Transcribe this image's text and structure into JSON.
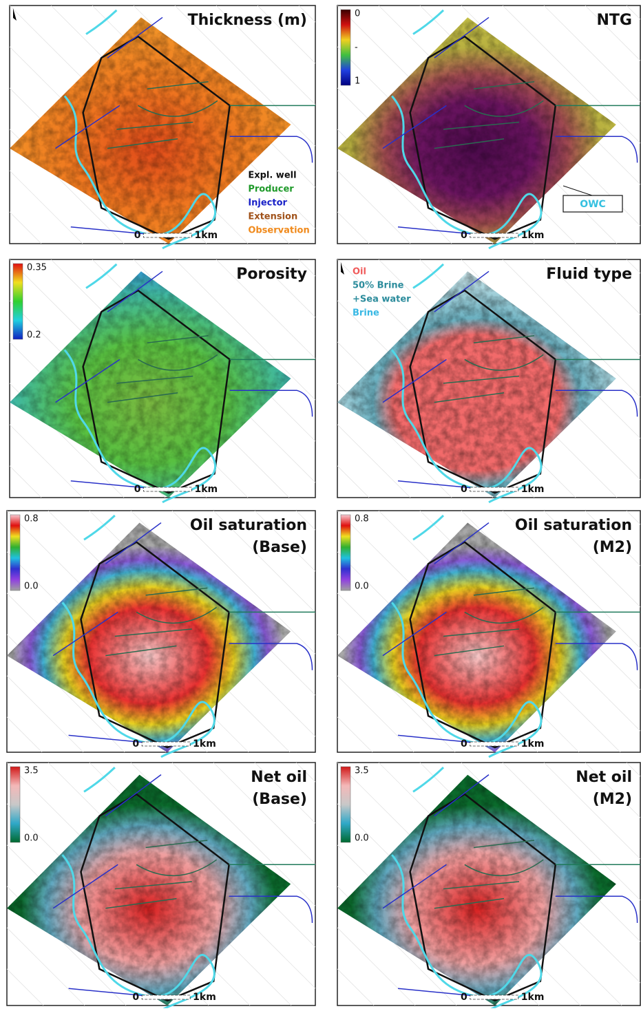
{
  "panels": [
    {
      "title": [
        "Thickness (m)"
      ],
      "legend": [
        {
          "label": "Expl. well",
          "color": "#111111"
        },
        {
          "label": "Producer",
          "color": "#1f9a2a"
        },
        {
          "label": "Injector",
          "color": "#1a22c8"
        },
        {
          "label": "Extension",
          "color": "#a0521a"
        },
        {
          "label": "Observation",
          "color": "#f08a1c"
        }
      ],
      "scale": [
        "0",
        "1km"
      ]
    },
    {
      "title": [
        "NTG"
      ],
      "colorbar": [
        "0",
        "-",
        "1"
      ],
      "callout": "OWC",
      "scale": [
        "0",
        "1km"
      ]
    },
    {
      "title": [
        "Porosity"
      ],
      "colorbar": [
        "0.35",
        "0.2"
      ],
      "scale": [
        "0",
        "1km"
      ]
    },
    {
      "title": [
        "Fluid type"
      ],
      "legend": [
        {
          "label": "Oil",
          "color": "#f05a5a"
        },
        {
          "label": "50% Brine",
          "color": "#2c8c9c"
        },
        {
          "label": "+Sea water",
          "color": "#2c8c9c"
        },
        {
          "label": "Brine",
          "color": "#38b8e4"
        }
      ],
      "scale": [
        "0",
        "1km"
      ]
    },
    {
      "title": [
        "Oil saturation",
        "(Base)"
      ],
      "colorbar": [
        "0.8",
        "0.0"
      ],
      "scale": [
        "0",
        "1km"
      ]
    },
    {
      "title": [
        "Oil saturation",
        "(M2)"
      ],
      "colorbar": [
        "0.8",
        "0.0"
      ],
      "scale": [
        "0",
        "1km"
      ]
    },
    {
      "title": [
        "Net oil",
        "(Base)"
      ],
      "colorbar": [
        "3.5",
        "0.0"
      ],
      "scale": [
        "0",
        "1km"
      ]
    },
    {
      "title": [
        "Net oil",
        "(M2)"
      ],
      "colorbar": [
        "3.5",
        "0.0"
      ],
      "scale": [
        "0",
        "1km"
      ]
    }
  ]
}
